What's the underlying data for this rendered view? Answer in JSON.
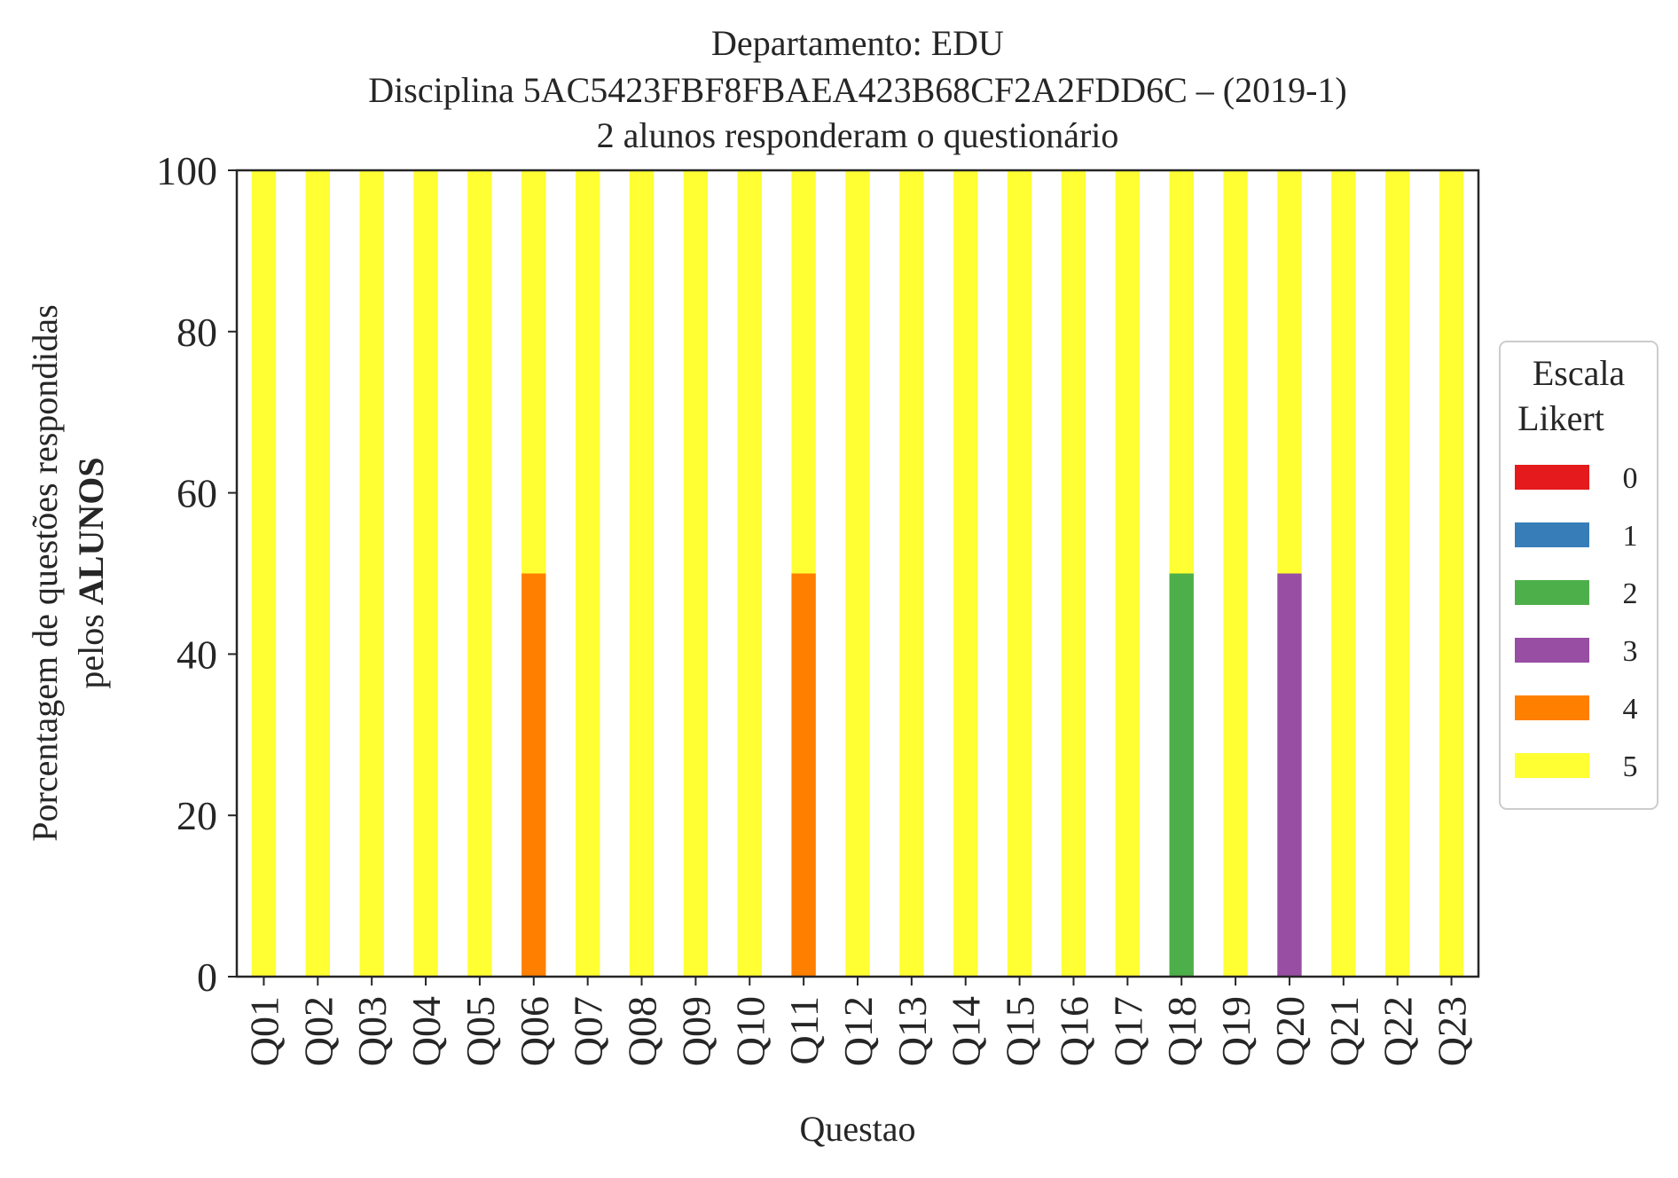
{
  "chart_data": {
    "type": "bar",
    "stacked": true,
    "title_lines": [
      "Departamento: EDU",
      "Disciplina 5AC5423FBF8FBAEA423B68CF2A2FDD6C – (2019-1)",
      "2 alunos responderam o questionário"
    ],
    "xlabel": "Questao",
    "ylabel_line1": "Porcentagem de questões respondidas",
    "ylabel_line2_prefix": "pelos ",
    "ylabel_line2_bold": "ALUNOS",
    "ylim": [
      0,
      100
    ],
    "yticks": [
      0,
      20,
      40,
      60,
      80,
      100
    ],
    "grid": false,
    "legend": {
      "title_lines": [
        "Escala",
        "Likert"
      ],
      "placement": "right"
    },
    "categories": [
      "Q01",
      "Q02",
      "Q03",
      "Q04",
      "Q05",
      "Q06",
      "Q07",
      "Q08",
      "Q09",
      "Q10",
      "Q11",
      "Q12",
      "Q13",
      "Q14",
      "Q15",
      "Q16",
      "Q17",
      "Q18",
      "Q19",
      "Q20",
      "Q21",
      "Q22",
      "Q23"
    ],
    "series": [
      {
        "name": "0",
        "color": "#e41a1c",
        "values": [
          0,
          0,
          0,
          0,
          0,
          0,
          0,
          0,
          0,
          0,
          0,
          0,
          0,
          0,
          0,
          0,
          0,
          0,
          0,
          0,
          0,
          0,
          0
        ]
      },
      {
        "name": "1",
        "color": "#377eb8",
        "values": [
          0,
          0,
          0,
          0,
          0,
          0,
          0,
          0,
          0,
          0,
          0,
          0,
          0,
          0,
          0,
          0,
          0,
          0,
          0,
          0,
          0,
          0,
          0
        ]
      },
      {
        "name": "2",
        "color": "#4daf4a",
        "values": [
          0,
          0,
          0,
          0,
          0,
          0,
          0,
          0,
          0,
          0,
          0,
          0,
          0,
          0,
          0,
          0,
          0,
          50,
          0,
          0,
          0,
          0,
          0
        ]
      },
      {
        "name": "3",
        "color": "#984ea3",
        "values": [
          0,
          0,
          0,
          0,
          0,
          0,
          0,
          0,
          0,
          0,
          0,
          0,
          0,
          0,
          0,
          0,
          0,
          0,
          0,
          50,
          0,
          0,
          0
        ]
      },
      {
        "name": "4",
        "color": "#ff7f00",
        "values": [
          0,
          0,
          0,
          0,
          0,
          50,
          0,
          0,
          0,
          0,
          50,
          0,
          0,
          0,
          0,
          0,
          0,
          0,
          0,
          0,
          0,
          0,
          0
        ]
      },
      {
        "name": "5",
        "color": "#ffff33",
        "values": [
          100,
          100,
          100,
          100,
          100,
          50,
          100,
          100,
          100,
          100,
          50,
          100,
          100,
          100,
          100,
          100,
          100,
          50,
          100,
          50,
          100,
          100,
          100
        ]
      }
    ]
  }
}
